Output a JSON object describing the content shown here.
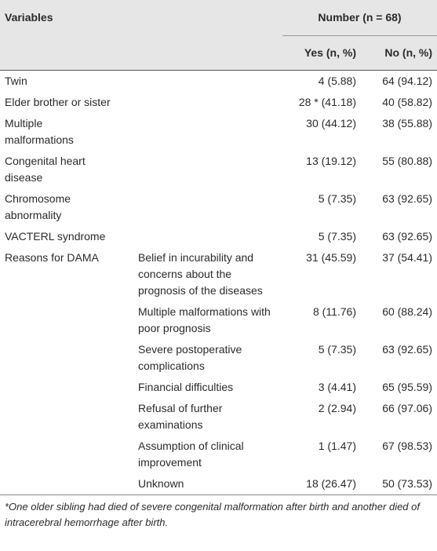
{
  "table": {
    "header": {
      "variables": "Variables",
      "number": "Number (n = 68)",
      "yes": "Yes (n, %)",
      "no": "No (n, %)"
    },
    "rows": [
      {
        "variable": "Twin",
        "yes": "4 (5.88)",
        "no": "64 (94.12)"
      },
      {
        "variable": "Elder brother or sister",
        "yes": "28 * (41.18)",
        "no": "40 (58.82)"
      },
      {
        "variable": "Multiple malformations",
        "yes": "30 (44.12)",
        "no": "38 (55.88)"
      },
      {
        "variable": "Congenital heart disease",
        "yes": "13 (19.12)",
        "no": "55 (80.88)"
      },
      {
        "variable": "Chromosome abnormality",
        "yes": "5 (7.35)",
        "no": "63 (92.65)"
      },
      {
        "variable": "VACTERL syndrome",
        "yes": "5 (7.35)",
        "no": "63 (92.65)"
      }
    ],
    "reasons": {
      "label": "Reasons for DAMA",
      "items": [
        {
          "reason": "Belief in incurability and concerns about the prognosis of the diseases",
          "yes": "31 (45.59)",
          "no": "37 (54.41)"
        },
        {
          "reason": "Multiple malformations with poor prognosis",
          "yes": "8 (11.76)",
          "no": "60 (88.24)"
        },
        {
          "reason": "Severe postoperative complications",
          "yes": "5 (7.35)",
          "no": "63 (92.65)"
        },
        {
          "reason": "Financial difficulties",
          "yes": "3 (4.41)",
          "no": "65 (95.59)"
        },
        {
          "reason": "Refusal of further examinations",
          "yes": "2 (2.94)",
          "no": "66 (97.06)"
        },
        {
          "reason": "Assumption of clinical improvement",
          "yes": "1 (1.47)",
          "no": "67 (98.53)"
        },
        {
          "reason": "Unknown",
          "yes": "18 (26.47)",
          "no": "50 (73.53)"
        }
      ]
    },
    "footnote": "*One older sibling had died of severe congenital malformation after birth and another died of intracerebral hemorrhage after birth."
  }
}
